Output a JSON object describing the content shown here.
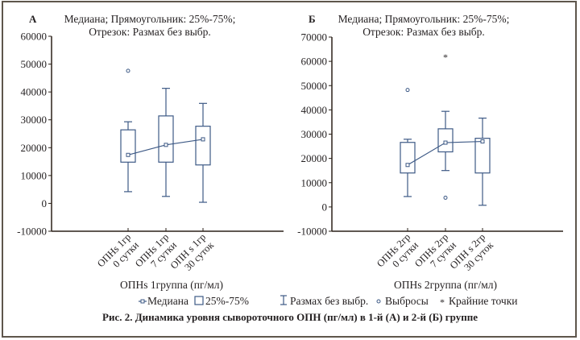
{
  "figure_caption": "Рис. 2. Динамика уровня сывороточного ОПН (пг/мл) в 1-й (А) и 2-й (Б) группе",
  "legend": {
    "items": [
      {
        "symbol": "median-marker",
        "label": "Медиана"
      },
      {
        "symbol": "box",
        "label": "25%-75%"
      },
      {
        "symbol": "whisker",
        "label": "Размах без выбр."
      },
      {
        "symbol": "outlier-circle",
        "label": "Выбросы"
      },
      {
        "symbol": "extreme-asterisk",
        "label": "Крайние точки"
      }
    ]
  },
  "colors": {
    "series": "#3e5a86",
    "axis": "#2b2118",
    "extreme": "#6b5a48",
    "frame": "#5e564c"
  },
  "chart_data": [
    {
      "type": "box",
      "panel_label": "А",
      "title": [
        "Медиана; Прямоугольник: 25%-75%;",
        "Отрезок: Размах без выбр."
      ],
      "xlabel": "ОПНs 1группа (пг/мл)",
      "ylabel": "",
      "ylim": [
        -10000,
        60000
      ],
      "yticks": [
        -10000,
        0,
        10000,
        20000,
        30000,
        40000,
        50000,
        60000
      ],
      "categories": [
        [
          "ОПНs 1гр",
          "0 сутки"
        ],
        [
          "ОПНs 1гр",
          "7 сутки"
        ],
        [
          "ОПН s 1гр",
          "30 суток"
        ]
      ],
      "boxes": [
        {
          "whisker_low": 4200,
          "q1": 14800,
          "median": 17400,
          "q3": 26400,
          "whisker_high": 29300,
          "outliers": [
            47600
          ],
          "extremes": []
        },
        {
          "whisker_low": 2500,
          "q1": 14800,
          "median": 21000,
          "q3": 31400,
          "whisker_high": 41300,
          "outliers": [],
          "extremes": []
        },
        {
          "whisker_low": 400,
          "q1": 13800,
          "median": 23000,
          "q3": 27700,
          "whisker_high": 35900,
          "outliers": [],
          "extremes": []
        }
      ]
    },
    {
      "type": "box",
      "panel_label": "Б",
      "title": [
        "Медиана; Прямоугольник: 25%-75%;",
        "Отрезок: Размах без выбр."
      ],
      "xlabel": "ОПНs 2группа (пг/мл)",
      "ylabel": "",
      "ylim": [
        -10000,
        70000
      ],
      "yticks": [
        -10000,
        0,
        10000,
        20000,
        30000,
        40000,
        50000,
        60000,
        70000
      ],
      "categories": [
        [
          "ОПНs 2гр",
          "0 сутки"
        ],
        [
          "ОПНs 2гр",
          "7 сутки"
        ],
        [
          "ОПН s 2гр",
          "30 суток"
        ]
      ],
      "boxes": [
        {
          "whisker_low": 4300,
          "q1": 14000,
          "median": 17300,
          "q3": 26600,
          "whisker_high": 27900,
          "outliers": [
            48200
          ],
          "extremes": []
        },
        {
          "whisker_low": 15000,
          "q1": 22700,
          "median": 26500,
          "q3": 32200,
          "whisker_high": 39400,
          "outliers": [
            3800
          ],
          "extremes": [
            62100
          ]
        },
        {
          "whisker_low": 700,
          "q1": 14000,
          "median": 27000,
          "q3": 28300,
          "whisker_high": 36600,
          "outliers": [],
          "extremes": []
        }
      ]
    }
  ]
}
